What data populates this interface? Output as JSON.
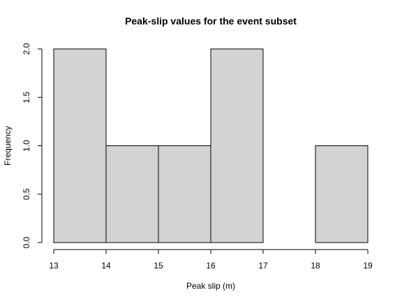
{
  "chart_data": {
    "type": "bar",
    "subtype": "histogram",
    "title": "Peak-slip values for the event subset",
    "xlabel": "Peak slip (m)",
    "ylabel": "Frequency",
    "bins": [
      {
        "start": 13,
        "end": 14,
        "count": 2
      },
      {
        "start": 14,
        "end": 15,
        "count": 1
      },
      {
        "start": 15,
        "end": 16,
        "count": 1
      },
      {
        "start": 16,
        "end": 17,
        "count": 2
      },
      {
        "start": 17,
        "end": 18,
        "count": 0
      },
      {
        "start": 18,
        "end": 19,
        "count": 1
      }
    ],
    "xlim": [
      13,
      19
    ],
    "ylim": [
      0,
      2
    ],
    "x_ticks": [
      13,
      14,
      15,
      16,
      17,
      18,
      19
    ],
    "x_tick_labels": [
      "13",
      "14",
      "15",
      "16",
      "17",
      "18",
      "19"
    ],
    "y_ticks": [
      0,
      0.5,
      1,
      1.5,
      2
    ],
    "y_tick_labels": [
      "0.0",
      "0.5",
      "1.0",
      "1.5",
      "2.0"
    ],
    "grid": false,
    "legend": "none",
    "colors": {
      "bar_fill": "#d3d3d3",
      "bar_stroke": "#000000",
      "text": "#000000",
      "background": "#ffffff"
    }
  }
}
